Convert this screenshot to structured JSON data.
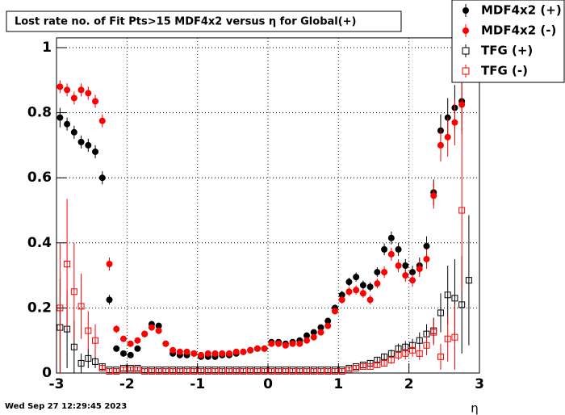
{
  "chart_data": {
    "type": "scatter",
    "title": "Lost rate no. of Fit Pts>15 MDF4x2 versus η for Global(+)",
    "x_label": "η",
    "timestamp": "Wed Sep 27 12:29:45 2023",
    "xlim": [
      -3,
      3
    ],
    "ylim": [
      0,
      1.03
    ],
    "xticks": [
      -3,
      -2,
      -1,
      0,
      1,
      2,
      3
    ],
    "yticks": [
      0,
      0.2,
      0.4,
      0.6,
      0.8,
      1
    ],
    "grid": true,
    "legend": "top-right",
    "x": [
      -2.95,
      -2.85,
      -2.75,
      -2.65,
      -2.55,
      -2.45,
      -2.35,
      -2.25,
      -2.15,
      -2.05,
      -1.95,
      -1.85,
      -1.75,
      -1.65,
      -1.55,
      -1.45,
      -1.35,
      -1.25,
      -1.15,
      -1.05,
      -0.95,
      -0.85,
      -0.75,
      -0.65,
      -0.55,
      -0.45,
      -0.35,
      -0.25,
      -0.15,
      -0.05,
      0.05,
      0.15,
      0.25,
      0.35,
      0.45,
      0.55,
      0.65,
      0.75,
      0.85,
      0.95,
      1.05,
      1.15,
      1.25,
      1.35,
      1.45,
      1.55,
      1.65,
      1.75,
      1.85,
      1.95,
      2.05,
      2.15,
      2.25,
      2.35,
      2.45,
      2.55,
      2.65,
      2.75,
      2.85,
      2.95
    ],
    "series": [
      {
        "name": "MDF4x2 (+)",
        "color": "#000000",
        "marker": "filled-circle",
        "values": [
          0.785,
          0.765,
          0.74,
          0.71,
          0.7,
          0.68,
          0.6,
          0.225,
          0.075,
          0.06,
          0.055,
          0.075,
          0.12,
          0.15,
          0.145,
          0.09,
          0.06,
          0.055,
          0.055,
          0.06,
          0.05,
          0.05,
          0.05,
          0.055,
          0.055,
          0.06,
          0.065,
          0.07,
          0.075,
          0.075,
          0.095,
          0.095,
          0.09,
          0.095,
          0.1,
          0.115,
          0.125,
          0.14,
          0.16,
          0.2,
          0.24,
          0.28,
          0.295,
          0.27,
          0.265,
          0.31,
          0.38,
          0.415,
          0.38,
          0.33,
          0.31,
          0.33,
          0.39,
          0.555,
          0.745,
          0.785,
          0.815,
          0.835,
          null,
          null
        ],
        "errors": [
          0.03,
          0.02,
          0.02,
          0.02,
          0.02,
          0.02,
          0.02,
          0.015,
          0.01,
          0.008,
          0.008,
          0.008,
          0.01,
          0.01,
          0.01,
          0.008,
          0.006,
          0.006,
          0.006,
          0.006,
          0.005,
          0.005,
          0.005,
          0.005,
          0.005,
          0.005,
          0.005,
          0.005,
          0.005,
          0.005,
          0.006,
          0.006,
          0.006,
          0.006,
          0.006,
          0.007,
          0.007,
          0.008,
          0.009,
          0.01,
          0.012,
          0.013,
          0.014,
          0.014,
          0.014,
          0.015,
          0.018,
          0.02,
          0.02,
          0.02,
          0.02,
          0.025,
          0.03,
          0.04,
          0.05,
          0.06,
          0.07,
          0.09,
          null,
          null
        ]
      },
      {
        "name": "MDF4x2 (-)",
        "color": "#ff0000",
        "marker": "filled-circle",
        "values": [
          0.88,
          0.87,
          0.845,
          0.87,
          0.86,
          0.835,
          0.775,
          0.335,
          0.135,
          0.105,
          0.09,
          0.1,
          0.12,
          0.14,
          0.13,
          0.09,
          0.07,
          0.065,
          0.065,
          0.06,
          0.055,
          0.06,
          0.06,
          0.06,
          0.06,
          0.065,
          0.065,
          0.07,
          0.075,
          0.075,
          0.09,
          0.09,
          0.085,
          0.09,
          0.09,
          0.1,
          0.11,
          0.125,
          0.145,
          0.19,
          0.225,
          0.25,
          0.255,
          0.245,
          0.225,
          0.275,
          0.31,
          0.365,
          0.33,
          0.3,
          0.285,
          0.32,
          0.35,
          0.545,
          0.7,
          0.725,
          0.77,
          0.825,
          null,
          null
        ],
        "errors": [
          0.02,
          0.02,
          0.02,
          0.02,
          0.02,
          0.02,
          0.02,
          0.02,
          0.012,
          0.01,
          0.009,
          0.009,
          0.01,
          0.01,
          0.01,
          0.008,
          0.006,
          0.006,
          0.006,
          0.006,
          0.005,
          0.005,
          0.005,
          0.005,
          0.005,
          0.005,
          0.005,
          0.005,
          0.005,
          0.005,
          0.006,
          0.006,
          0.006,
          0.006,
          0.006,
          0.007,
          0.007,
          0.008,
          0.009,
          0.01,
          0.012,
          0.013,
          0.014,
          0.014,
          0.014,
          0.015,
          0.018,
          0.02,
          0.02,
          0.02,
          0.02,
          0.025,
          0.03,
          0.04,
          0.05,
          0.06,
          0.07,
          0.09,
          null,
          null
        ]
      },
      {
        "name": "TFG (+)",
        "color": "#000000",
        "marker": "open-square",
        "values": [
          0.14,
          0.135,
          0.08,
          0.03,
          0.045,
          0.035,
          0.02,
          0.01,
          0.01,
          0.015,
          0.015,
          0.015,
          0.01,
          0.01,
          0.01,
          0.01,
          0.01,
          0.01,
          0.01,
          0.01,
          0.01,
          0.01,
          0.01,
          0.01,
          0.01,
          0.01,
          0.01,
          0.01,
          0.01,
          0.01,
          0.01,
          0.01,
          0.01,
          0.01,
          0.01,
          0.01,
          0.01,
          0.01,
          0.01,
          0.01,
          0.01,
          0.015,
          0.02,
          0.025,
          0.03,
          0.04,
          0.05,
          0.06,
          0.075,
          0.08,
          0.085,
          0.1,
          0.12,
          0.13,
          0.185,
          0.24,
          0.23,
          0.21,
          0.285,
          null
        ],
        "errors": [
          0.15,
          0.12,
          0.08,
          0.03,
          0.03,
          0.02,
          0.01,
          0.005,
          0.004,
          0.004,
          0.004,
          0.004,
          0.003,
          0.003,
          0.003,
          0.003,
          0.003,
          0.003,
          0.003,
          0.003,
          0.003,
          0.003,
          0.003,
          0.003,
          0.003,
          0.003,
          0.003,
          0.003,
          0.003,
          0.003,
          0.003,
          0.003,
          0.003,
          0.003,
          0.003,
          0.003,
          0.003,
          0.003,
          0.003,
          0.003,
          0.003,
          0.004,
          0.005,
          0.006,
          0.007,
          0.008,
          0.01,
          0.012,
          0.015,
          0.018,
          0.02,
          0.025,
          0.03,
          0.04,
          0.06,
          0.09,
          0.12,
          0.15,
          0.2,
          null
        ]
      },
      {
        "name": "TFG (-)",
        "color": "#ff0000",
        "marker": "open-square",
        "values": [
          0.2,
          0.335,
          0.25,
          0.205,
          0.13,
          0.1,
          0.015,
          0.005,
          0.005,
          0.01,
          0.01,
          0.01,
          0.005,
          0.005,
          0.005,
          0.005,
          0.005,
          0.005,
          0.005,
          0.005,
          0.005,
          0.005,
          0.005,
          0.005,
          0.005,
          0.005,
          0.005,
          0.005,
          0.005,
          0.005,
          0.005,
          0.005,
          0.005,
          0.005,
          0.005,
          0.005,
          0.005,
          0.005,
          0.005,
          0.005,
          0.005,
          0.01,
          0.015,
          0.02,
          0.02,
          0.025,
          0.03,
          0.04,
          0.055,
          0.06,
          0.07,
          0.06,
          0.085,
          0.125,
          0.05,
          0.105,
          0.11,
          0.5,
          null,
          null
        ],
        "errors": [
          0.2,
          0.2,
          0.15,
          0.1,
          0.06,
          0.05,
          0.01,
          0.004,
          0.003,
          0.004,
          0.004,
          0.004,
          0.003,
          0.003,
          0.003,
          0.003,
          0.003,
          0.003,
          0.003,
          0.003,
          0.003,
          0.003,
          0.003,
          0.003,
          0.003,
          0.003,
          0.003,
          0.003,
          0.003,
          0.003,
          0.003,
          0.003,
          0.003,
          0.003,
          0.003,
          0.003,
          0.003,
          0.003,
          0.003,
          0.003,
          0.003,
          0.004,
          0.005,
          0.006,
          0.007,
          0.008,
          0.01,
          0.012,
          0.015,
          0.018,
          0.02,
          0.02,
          0.03,
          0.04,
          0.04,
          0.07,
          0.1,
          0.25,
          null,
          null
        ]
      }
    ]
  }
}
